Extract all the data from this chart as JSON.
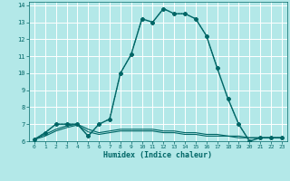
{
  "xlabel": "Humidex (Indice chaleur)",
  "bg_color": "#b3e8e8",
  "grid_color": "#ffffff",
  "line_color": "#006666",
  "xlim": [
    -0.5,
    23.5
  ],
  "ylim": [
    6,
    14.2
  ],
  "xticks": [
    0,
    1,
    2,
    3,
    4,
    5,
    6,
    7,
    8,
    9,
    10,
    11,
    12,
    13,
    14,
    15,
    16,
    17,
    18,
    19,
    20,
    21,
    22,
    23
  ],
  "yticks": [
    6,
    7,
    8,
    9,
    10,
    11,
    12,
    13,
    14
  ],
  "series": [
    {
      "x": [
        0,
        1,
        2,
        3,
        4,
        5,
        6,
        7,
        8,
        9,
        10,
        11,
        12,
        13,
        14,
        15,
        16,
        17,
        18,
        19,
        20,
        21,
        22,
        23
      ],
      "y": [
        6.1,
        6.5,
        7.0,
        7.0,
        7.0,
        6.3,
        7.0,
        7.3,
        10.0,
        11.1,
        13.2,
        13.0,
        13.8,
        13.5,
        13.5,
        13.2,
        12.2,
        10.3,
        8.5,
        7.0,
        6.0,
        6.2,
        6.2,
        6.2
      ],
      "linestyle": "-",
      "marker": "D",
      "markersize": 2.0,
      "linewidth": 1.0
    },
    {
      "x": [
        0,
        1,
        2,
        3,
        4,
        5,
        6,
        7,
        8,
        9,
        10,
        11,
        12,
        13,
        14,
        15,
        16,
        17,
        18,
        19,
        20,
        21,
        22,
        23
      ],
      "y": [
        6.1,
        6.5,
        7.0,
        7.0,
        7.0,
        6.3,
        7.0,
        7.3,
        10.0,
        11.1,
        13.2,
        13.0,
        13.8,
        13.5,
        13.5,
        13.2,
        12.2,
        10.3,
        8.5,
        7.0,
        6.0,
        6.2,
        6.2,
        6.2
      ],
      "linestyle": ":",
      "marker": "D",
      "markersize": 2.0,
      "linewidth": 0.8
    },
    {
      "x": [
        0,
        1,
        2,
        3,
        4,
        5,
        6,
        7,
        8,
        9,
        10,
        11,
        12,
        13,
        14,
        15,
        16,
        17,
        18,
        19,
        20,
        21,
        22,
        23
      ],
      "y": [
        6.1,
        6.4,
        6.7,
        6.9,
        7.0,
        6.7,
        6.5,
        6.6,
        6.7,
        6.7,
        6.7,
        6.7,
        6.6,
        6.6,
        6.5,
        6.5,
        6.4,
        6.4,
        6.3,
        6.3,
        6.2,
        6.2,
        6.2,
        6.2
      ],
      "linestyle": "-",
      "marker": null,
      "markersize": 0,
      "linewidth": 0.8
    },
    {
      "x": [
        0,
        1,
        2,
        3,
        4,
        5,
        6,
        7,
        8,
        9,
        10,
        11,
        12,
        13,
        14,
        15,
        16,
        17,
        18,
        19,
        20,
        21,
        22,
        23
      ],
      "y": [
        6.1,
        6.3,
        6.6,
        6.8,
        6.95,
        6.55,
        6.4,
        6.5,
        6.6,
        6.6,
        6.6,
        6.6,
        6.5,
        6.5,
        6.4,
        6.4,
        6.3,
        6.3,
        6.3,
        6.2,
        6.2,
        6.2,
        6.2,
        6.2
      ],
      "linestyle": "-",
      "marker": null,
      "markersize": 0,
      "linewidth": 0.8
    }
  ]
}
